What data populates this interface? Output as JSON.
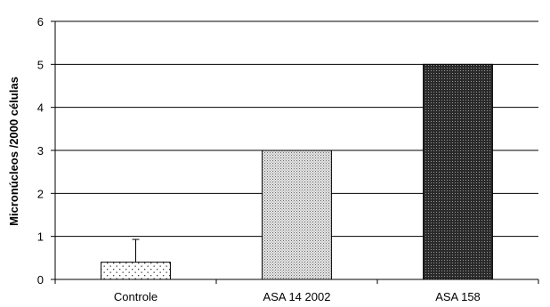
{
  "chart_data": {
    "type": "bar",
    "title": "",
    "xlabel": "",
    "ylabel": "Micronúcleos /2000 células",
    "categories": [
      "Controle",
      "ASA 14 2002",
      "ASA 158"
    ],
    "values": [
      0.4,
      3.0,
      5.0
    ],
    "error_bars": [
      0.53,
      null,
      null
    ],
    "ylim": [
      0,
      6
    ],
    "yticks": [
      "0",
      "1",
      "2",
      "3",
      "4",
      "5",
      "6"
    ],
    "grid": true,
    "legend": "none",
    "bar_patterns": [
      "sparse-dots",
      "dense-stipple",
      "dark-crosshatch"
    ]
  }
}
